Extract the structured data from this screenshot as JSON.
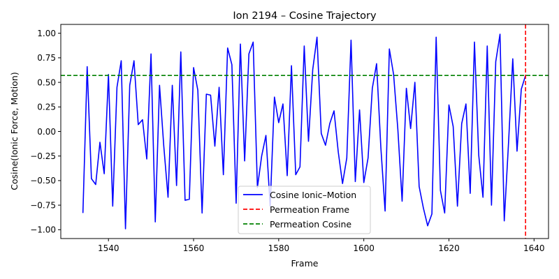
{
  "chart_data": {
    "type": "line",
    "title": "Ion 2194 – Cosine Trajectory",
    "xlabel": "Frame",
    "ylabel": "Cosine(Ionic Force, Motion)",
    "xlim": [
      1528.8,
      1643.4
    ],
    "ylim": [
      -1.09,
      1.09
    ],
    "xticks": [
      1540,
      1560,
      1580,
      1600,
      1620,
      1640
    ],
    "yticks": [
      -1.0,
      -0.75,
      -0.5,
      -0.25,
      0.0,
      0.25,
      0.5,
      0.75,
      1.0
    ],
    "xtick_labels": [
      "1540",
      "1560",
      "1580",
      "1600",
      "1620",
      "1640"
    ],
    "ytick_labels": [
      "−1.00",
      "−0.75",
      "−0.50",
      "−0.25",
      "0.00",
      "0.25",
      "0.50",
      "0.75",
      "1.00"
    ],
    "grid": false,
    "legend_position": "lower-center",
    "series": [
      {
        "name": "Cosine Ionic–Motion",
        "color": "#0000ff",
        "x_start": 1534,
        "x_step": 1,
        "values": [
          -0.83,
          0.66,
          -0.48,
          -0.54,
          -0.11,
          -0.43,
          0.58,
          -0.76,
          0.45,
          0.72,
          -0.99,
          0.47,
          0.72,
          0.07,
          0.12,
          -0.28,
          0.79,
          -0.92,
          0.47,
          -0.15,
          -0.67,
          0.47,
          -0.55,
          0.81,
          -0.7,
          -0.69,
          0.65,
          0.42,
          -0.83,
          0.38,
          0.37,
          -0.15,
          0.45,
          -0.44,
          0.85,
          0.68,
          -0.73,
          0.89,
          -0.3,
          0.79,
          0.91,
          -0.57,
          -0.25,
          -0.04,
          -0.76,
          0.35,
          0.09,
          0.28,
          -0.45,
          0.67,
          -0.44,
          -0.36,
          0.87,
          -0.1,
          0.63,
          0.96,
          -0.02,
          -0.14,
          0.08,
          0.21,
          -0.21,
          -0.53,
          -0.27,
          0.93,
          -0.51,
          0.22,
          -0.52,
          -0.27,
          0.44,
          0.69,
          -0.16,
          -0.81,
          0.84,
          0.58,
          0.02,
          -0.71,
          0.44,
          0.03,
          0.5,
          -0.56,
          -0.78,
          -0.96,
          -0.84,
          0.96,
          -0.6,
          -0.83,
          0.27,
          0.05,
          -0.76,
          0.08,
          0.28,
          -0.63,
          0.91,
          -0.24,
          -0.67,
          0.87,
          -0.75,
          0.71,
          0.99,
          -0.91,
          -0.12,
          0.74,
          -0.2,
          0.43,
          0.57
        ]
      }
    ],
    "reference_lines": [
      {
        "name": "Permeation Frame",
        "orientation": "vertical",
        "value": 1638,
        "color": "#ff0000",
        "style": "dashed"
      },
      {
        "name": "Permeation Cosine",
        "orientation": "horizontal",
        "value": 0.57,
        "color": "#008000",
        "style": "dashed"
      }
    ]
  }
}
